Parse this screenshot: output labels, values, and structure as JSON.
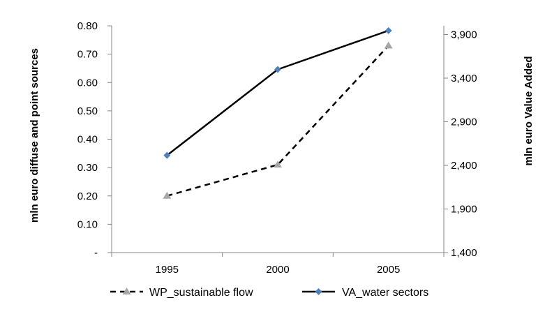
{
  "chart_data": {
    "type": "line",
    "x": [
      "1995",
      "2000",
      "2005"
    ],
    "left_axis": {
      "label": "mln euro diffuse and point sources",
      "range": [
        0,
        0.8
      ],
      "ticks": [
        0,
        0.1,
        0.2,
        0.3,
        0.4,
        0.5,
        0.6,
        0.7,
        0.8
      ],
      "tick_labels": [
        "-",
        "0.10",
        "0.20",
        "0.30",
        "0.40",
        "0.50",
        "0.60",
        "0.70",
        "0.80"
      ]
    },
    "right_axis": {
      "label": "mln euro Value Added",
      "range": [
        1400,
        4000
      ],
      "ticks": [
        1400,
        1900,
        2400,
        2900,
        3400,
        3900
      ],
      "tick_labels": [
        "1,400",
        "1,900",
        "2,400",
        "2,900",
        "3,400",
        "3,900"
      ]
    },
    "series": [
      {
        "name": "WP_sustainable flow",
        "axis": "left",
        "values": [
          0.2,
          0.31,
          0.73
        ],
        "line_style": "dashed",
        "marker": "triangle",
        "line_color": "#000000",
        "marker_color": "#A6A6A6"
      },
      {
        "name": "VA_water sectors",
        "axis": "right",
        "values": [
          2515,
          3500,
          3945
        ],
        "line_style": "solid",
        "marker": "diamond",
        "line_color": "#000000",
        "marker_color": "#4F81BD"
      }
    ],
    "grid": false,
    "legend_position": "bottom"
  }
}
